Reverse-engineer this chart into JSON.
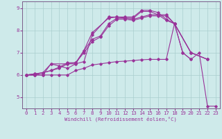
{
  "xlabel": "Windchill (Refroidissement éolien,°C)",
  "xlim": [
    -0.5,
    23.5
  ],
  "ylim": [
    4.5,
    9.3
  ],
  "background_color": "#ceeaea",
  "grid_color": "#aacece",
  "line_color": "#993399",
  "xticks": [
    0,
    1,
    2,
    3,
    4,
    5,
    6,
    7,
    8,
    9,
    10,
    11,
    12,
    13,
    14,
    15,
    16,
    17,
    18,
    19,
    20,
    21,
    22,
    23
  ],
  "yticks": [
    5,
    6,
    7,
    8,
    9
  ],
  "lines": [
    {
      "x": [
        0,
        1,
        2,
        3,
        4,
        5,
        6,
        7,
        8,
        10,
        11,
        12,
        13,
        14,
        15,
        16,
        17,
        18,
        20,
        22
      ],
      "y": [
        6.0,
        6.0,
        6.1,
        6.5,
        6.4,
        6.3,
        6.5,
        7.1,
        7.9,
        8.55,
        8.6,
        8.55,
        8.55,
        8.85,
        8.85,
        8.7,
        8.45,
        8.3,
        7.0,
        6.7
      ]
    },
    {
      "x": [
        0,
        1,
        2,
        3,
        4,
        5,
        6,
        7,
        8,
        9,
        10,
        11,
        12,
        13,
        14,
        15,
        16,
        17,
        18,
        20,
        22
      ],
      "y": [
        6.0,
        6.05,
        6.1,
        6.2,
        6.35,
        6.55,
        6.55,
        7.1,
        7.6,
        7.75,
        8.3,
        8.55,
        8.55,
        8.5,
        8.6,
        8.7,
        8.7,
        8.7,
        8.3,
        7.0,
        6.7
      ]
    },
    {
      "x": [
        0,
        1,
        2,
        3,
        4,
        5,
        6,
        7,
        8,
        9,
        10,
        11,
        12,
        13,
        14,
        15,
        16,
        17,
        18,
        19,
        20
      ],
      "y": [
        6.0,
        6.05,
        6.1,
        6.2,
        6.3,
        6.5,
        6.55,
        7.0,
        7.5,
        7.7,
        8.2,
        8.5,
        8.5,
        8.45,
        8.55,
        8.65,
        8.65,
        8.65,
        8.3,
        7.0,
        6.7
      ]
    },
    {
      "x": [
        0,
        1,
        2,
        3,
        5,
        6,
        7,
        8,
        10,
        11,
        12,
        13,
        14,
        15,
        16,
        17,
        18,
        20,
        22
      ],
      "y": [
        6.0,
        6.0,
        6.0,
        6.5,
        6.5,
        6.5,
        6.6,
        7.8,
        8.6,
        8.6,
        8.6,
        8.6,
        8.9,
        8.9,
        8.8,
        8.5,
        8.3,
        7.0,
        6.7
      ]
    },
    {
      "x": [
        0,
        1,
        2,
        3,
        4,
        5,
        6,
        7,
        8,
        9,
        10,
        11,
        12,
        13,
        14,
        15,
        16,
        17,
        18,
        19,
        20,
        21,
        22,
        23
      ],
      "y": [
        6.0,
        6.0,
        6.0,
        6.0,
        6.0,
        6.0,
        6.2,
        6.3,
        6.45,
        6.5,
        6.55,
        6.6,
        6.62,
        6.65,
        6.68,
        6.7,
        6.7,
        6.7,
        8.3,
        7.0,
        6.7,
        7.0,
        4.6,
        4.6
      ]
    }
  ]
}
